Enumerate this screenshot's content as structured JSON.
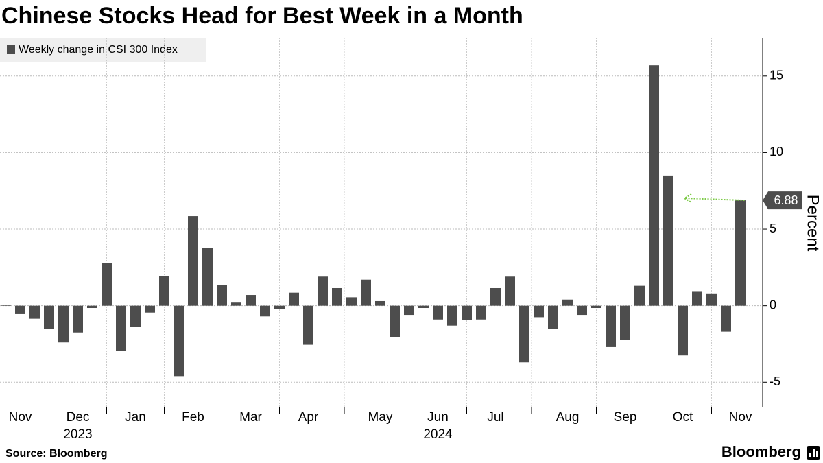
{
  "chart_data": {
    "type": "bar",
    "title": "Chinese Stocks Head for Best Week in a Month",
    "categories": [
      null,
      "Nov",
      null,
      null,
      null,
      "Dec",
      null,
      null,
      null,
      "Jan",
      null,
      null,
      null,
      "Feb",
      null,
      null,
      null,
      "Mar",
      null,
      null,
      null,
      "Apr",
      null,
      null,
      null,
      null,
      "May",
      null,
      null,
      null,
      "Jun",
      null,
      null,
      null,
      "Jul",
      null,
      null,
      null,
      null,
      "Aug",
      null,
      null,
      null,
      "Sep",
      null,
      null,
      null,
      "Oct",
      null,
      null,
      null,
      "Nov"
    ],
    "x_sublabels": [
      null,
      null,
      null,
      null,
      null,
      "2023",
      null,
      null,
      null,
      null,
      null,
      null,
      null,
      null,
      null,
      null,
      null,
      null,
      null,
      null,
      null,
      null,
      null,
      null,
      null,
      null,
      null,
      null,
      null,
      null,
      "2024",
      null,
      null,
      null,
      null,
      null,
      null,
      null,
      null,
      null,
      null,
      null,
      null,
      null,
      null,
      null,
      null,
      null,
      null,
      null,
      null,
      null
    ],
    "series": [
      {
        "name": "Weekly change in CSI 300 Index",
        "color": "#4d4d4d",
        "values": [
          0.05,
          -0.55,
          -0.85,
          -1.5,
          -2.4,
          -1.75,
          -0.15,
          2.8,
          -2.95,
          -1.4,
          -0.45,
          1.95,
          -4.6,
          5.85,
          3.75,
          1.35,
          0.2,
          0.7,
          -0.7,
          -0.2,
          0.85,
          -2.55,
          1.9,
          1.15,
          0.55,
          1.7,
          0.3,
          -2.05,
          -0.6,
          -0.15,
          -0.9,
          -1.3,
          -0.95,
          -0.9,
          1.15,
          1.9,
          -3.7,
          -0.75,
          -1.5,
          0.4,
          -0.6,
          -0.15,
          -2.7,
          -2.25,
          1.3,
          15.7,
          8.5,
          -3.25,
          0.95,
          0.8,
          -1.7,
          6.88
        ]
      }
    ],
    "y_label": "Percent",
    "ylim": [
      -6.6,
      17.5
    ],
    "yticks": [
      -5,
      0,
      5,
      10,
      15
    ],
    "grid": true,
    "highlight_color": "#7ac943",
    "source": "Source: Bloomberg",
    "brand": "Bloomberg"
  }
}
